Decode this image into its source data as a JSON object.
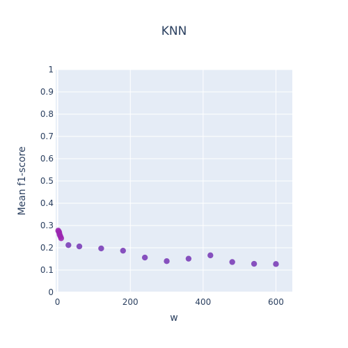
{
  "chart_data": {
    "type": "scatter",
    "title": "KNN",
    "xlabel": "w",
    "ylabel": "Mean f1-score",
    "xlim": [
      -5,
      645
    ],
    "ylim": [
      0,
      1
    ],
    "x_ticks": [
      0,
      200,
      400,
      600
    ],
    "y_ticks": [
      0,
      0.1,
      0.2,
      0.3,
      0.4,
      0.5,
      0.6,
      0.7,
      0.8,
      0.9,
      1
    ],
    "y_tick_labels": [
      "0",
      "0.1",
      "0.2",
      "0.3",
      "0.4",
      "0.5",
      "0.6",
      "0.7",
      "0.8",
      "0.9",
      "1"
    ],
    "grid": true,
    "colors": {
      "plot_bg": "#e5ecf6",
      "grid": "#ffffff",
      "marker_light": "#9b27b0",
      "marker_dark": "#7b3fb8",
      "text": "#2a3f5f"
    },
    "series": [
      {
        "points": [
          {
            "x": 2,
            "y": 0.277
          },
          {
            "x": 4,
            "y": 0.272
          },
          {
            "x": 5,
            "y": 0.266
          },
          {
            "x": 6,
            "y": 0.258
          },
          {
            "x": 8,
            "y": 0.251
          },
          {
            "x": 10,
            "y": 0.243
          },
          {
            "x": 30,
            "y": 0.212
          },
          {
            "x": 60,
            "y": 0.206
          },
          {
            "x": 120,
            "y": 0.197
          },
          {
            "x": 180,
            "y": 0.187
          },
          {
            "x": 240,
            "y": 0.156
          },
          {
            "x": 300,
            "y": 0.14
          },
          {
            "x": 360,
            "y": 0.151
          },
          {
            "x": 420,
            "y": 0.166
          },
          {
            "x": 480,
            "y": 0.136
          },
          {
            "x": 540,
            "y": 0.128
          },
          {
            "x": 600,
            "y": 0.127
          }
        ]
      }
    ]
  }
}
